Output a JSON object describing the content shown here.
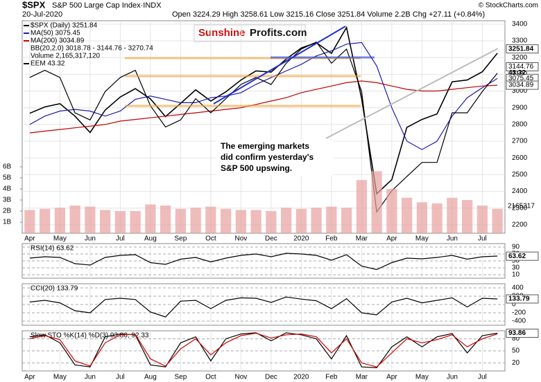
{
  "header": {
    "symbol": "$SPX",
    "name": "S&P 500 Large Cap Index·INDX",
    "date": "20-Jul-2020",
    "ohlc": "Open 3224.29 High 3258.61 Low 3215.16 Close 3251.84 Volume 2.2B Chg +27.11 (+0.84%)",
    "copyright": "© StockCharts.com"
  },
  "logo": {
    "left": "Sunshine",
    "right": "Profits.com"
  },
  "chart_data": [
    {
      "type": "line",
      "categories": [
        "Apr",
        null,
        "May",
        null,
        "Jun",
        null,
        "Jul",
        null,
        "Aug",
        null,
        "Sep",
        null,
        "Oct",
        null,
        "Nov",
        null,
        "Dec",
        null,
        "2020",
        null,
        "Feb",
        null,
        "Mar",
        null,
        "Apr",
        null,
        "May",
        null,
        "Jun",
        null,
        "Jul",
        null
      ],
      "ylim": [
        2150,
        3420
      ],
      "yticks": [
        2200,
        2300,
        2400,
        2500,
        2600,
        2700,
        2800,
        2900,
        3000,
        3100,
        3200,
        3300,
        3400
      ],
      "y2lim": [
        32,
        47
      ],
      "series": [
        {
          "name": "$SPX (Daily) 3251.84",
          "color": "#000000",
          "values": [
            2867,
            2905,
            2924,
            2850,
            2752,
            2886,
            2964,
            3014,
            2953,
            2847,
            2926,
            3007,
            2940,
            2995,
            3066,
            3120,
            3113,
            3191,
            3257,
            3289,
            3225,
            3380,
            2954,
            2386,
            2470,
            2783,
            2830,
            2863,
            3055,
            3066,
            3115,
            3226
          ]
        },
        {
          "name": "MA(50) 3075.45",
          "color": "#1a1ab0",
          "values": [
            2800,
            2850,
            2880,
            2890,
            2880,
            2850,
            2880,
            2950,
            2970,
            2950,
            2930,
            2930,
            2960,
            2970,
            2990,
            3040,
            3080,
            3120,
            3160,
            3210,
            3240,
            3280,
            3290,
            3150,
            2900,
            2700,
            2650,
            2700,
            2850,
            2960,
            3020,
            3075
          ]
        },
        {
          "name": "MA(200) 3034.89",
          "color": "#c00000",
          "values": [
            2750,
            2760,
            2770,
            2780,
            2790,
            2800,
            2820,
            2830,
            2840,
            2850,
            2860,
            2870,
            2880,
            2890,
            2900,
            2920,
            2940,
            2960,
            2990,
            3010,
            3030,
            3050,
            3060,
            3050,
            3030,
            3010,
            3000,
            3000,
            3010,
            3020,
            3030,
            3035
          ]
        },
        {
          "name": "EEM 43.32",
          "color": "#000000",
          "axis": "y2",
          "values": [
            43,
            43.5,
            43,
            40.5,
            40,
            42,
            43,
            43.5,
            41,
            39.5,
            40,
            41.5,
            40.5,
            41.5,
            42.5,
            43,
            42.5,
            44,
            45,
            45.5,
            44,
            45,
            42,
            33.5,
            35,
            36,
            37,
            37,
            40.5,
            40.5,
            42,
            43.3
          ]
        }
      ],
      "legend_extra": "BB(20,2.0) 3018.78 - 3144.76 - 3270.74",
      "tags": [
        3251.84,
        3144.76,
        3075.45,
        3034.89
      ],
      "y2tags": [
        43.32
      ],
      "annotation": [
        "The emerging markets",
        "did confirm yesterday's",
        "S&P 500 upswing."
      ]
    },
    {
      "type": "bar",
      "color": "#e8a0a0",
      "ylim": [
        0,
        7000000000
      ],
      "yticks": [
        {
          "value": 1000000000,
          "label": "1B"
        },
        {
          "value": 2000000000,
          "label": "2B"
        },
        {
          "value": 3000000000,
          "label": "3B"
        },
        {
          "value": 4000000000,
          "label": "4B"
        },
        {
          "value": 5000000000,
          "label": "5B"
        },
        {
          "value": 6000000000,
          "label": "6B"
        }
      ],
      "series": [
        {
          "name": "Volume 2,165,317,120",
          "color": "#e8a0a0",
          "values": [
            2100000000,
            2200000000,
            2300000000,
            2500000000,
            2400000000,
            2100000000,
            2000000000,
            2000000000,
            2600000000,
            2500000000,
            2200000000,
            2300000000,
            2400000000,
            2200000000,
            2100000000,
            2100000000,
            2000000000,
            2300000000,
            2200000000,
            2300000000,
            2400000000,
            2300000000,
            4800000000,
            5600000000,
            4000000000,
            3200000000,
            2800000000,
            2700000000,
            3200000000,
            3000000000,
            2500000000,
            2200000000
          ]
        }
      ],
      "last_label": "2165317"
    },
    {
      "type": "line",
      "title": "RSI(14) 63.62",
      "ylim": [
        0,
        100
      ],
      "yticks": [
        90,
        70,
        50,
        30,
        10
      ],
      "tags": [
        63.62
      ],
      "series": [
        {
          "color": "#000000",
          "values": [
            58,
            62,
            60,
            42,
            38,
            60,
            66,
            68,
            45,
            40,
            55,
            60,
            47,
            58,
            66,
            70,
            62,
            72,
            70,
            66,
            52,
            68,
            35,
            25,
            45,
            58,
            56,
            60,
            66,
            55,
            62,
            64
          ]
        }
      ]
    },
    {
      "type": "line",
      "title": "CCI(20) 133.79",
      "ylim": [
        -500,
        500
      ],
      "yticks": [
        400,
        200,
        0,
        -200,
        -400
      ],
      "tags": [
        133.79
      ],
      "series": [
        {
          "color": "#000000",
          "values": [
            60,
            100,
            40,
            -150,
            -200,
            120,
            150,
            120,
            -180,
            -300,
            80,
            100,
            -100,
            100,
            160,
            150,
            50,
            180,
            130,
            90,
            -100,
            140,
            -200,
            -250,
            60,
            150,
            40,
            100,
            160,
            -60,
            150,
            134
          ]
        }
      ]
    },
    {
      "type": "line",
      "title": "Slow STO %K(14) %D(3) 93.86, 92.33",
      "ylim": [
        0,
        100
      ],
      "yticks": [
        80,
        50,
        20
      ],
      "tags": [
        93.86
      ],
      "series": [
        {
          "color": "#000000",
          "values": [
            85,
            90,
            70,
            15,
            10,
            85,
            92,
            90,
            15,
            10,
            70,
            85,
            25,
            80,
            92,
            95,
            75,
            95,
            90,
            80,
            30,
            88,
            10,
            8,
            60,
            85,
            60,
            85,
            93,
            45,
            88,
            94
          ]
        },
        {
          "color": "#d00000",
          "values": [
            80,
            88,
            78,
            25,
            12,
            70,
            90,
            91,
            30,
            12,
            55,
            80,
            40,
            70,
            88,
            94,
            82,
            90,
            92,
            85,
            45,
            80,
            20,
            10,
            45,
            80,
            70,
            78,
            90,
            60,
            80,
            92
          ]
        }
      ]
    }
  ]
}
